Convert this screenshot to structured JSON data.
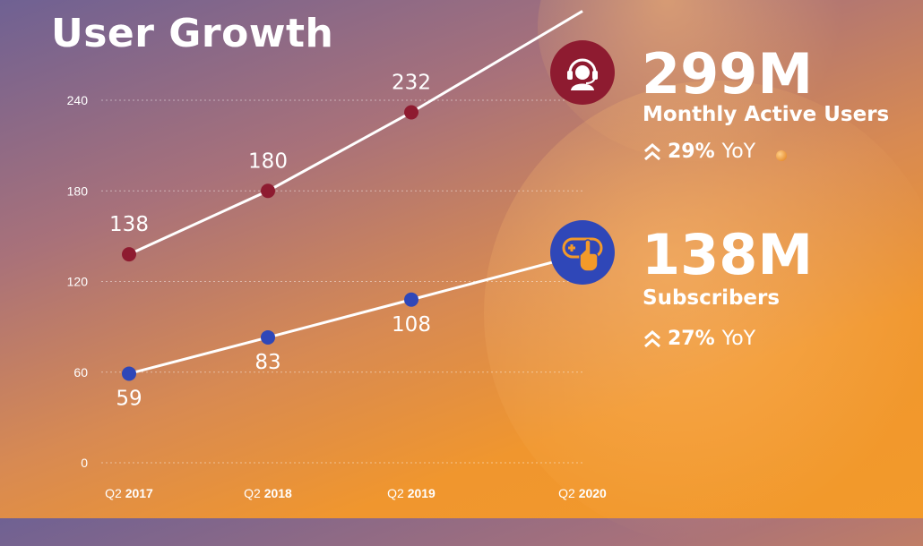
{
  "title": "User Growth",
  "colors": {
    "mau_marker": "#8e1b30",
    "subs_marker": "#2f47b8",
    "line": "#ffffff"
  },
  "chart_data": {
    "type": "line",
    "categories": [
      "Q2 2017",
      "Q2 2018",
      "Q2 2019",
      "Q2 2020"
    ],
    "x_tick_labels": [
      {
        "q": "Q2",
        "y": "2017"
      },
      {
        "q": "Q2",
        "y": "2018"
      },
      {
        "q": "Q2",
        "y": "2019"
      },
      {
        "q": "Q2",
        "y": "2020"
      }
    ],
    "ylim": [
      0,
      240
    ],
    "yticks": [
      0,
      60,
      120,
      180,
      240
    ],
    "grid": true,
    "series": [
      {
        "name": "Monthly Active Users",
        "values": [
          138,
          180,
          232,
          299
        ],
        "data_labels": [
          "138",
          "180",
          "232",
          null
        ]
      },
      {
        "name": "Subscribers",
        "values": [
          59,
          83,
          108,
          138
        ],
        "data_labels": [
          "59",
          "83",
          "108",
          null
        ]
      }
    ]
  },
  "stats": {
    "mau": {
      "value": "299M",
      "label": "Monthly Active Users",
      "yoy_pct": "29%",
      "yoy_suffix": "YoY",
      "icon": "headset-user-icon"
    },
    "subs": {
      "value": "138M",
      "label": "Subscribers",
      "yoy_pct": "27%",
      "yoy_suffix": "YoY",
      "icon": "tap-plus-icon"
    }
  }
}
